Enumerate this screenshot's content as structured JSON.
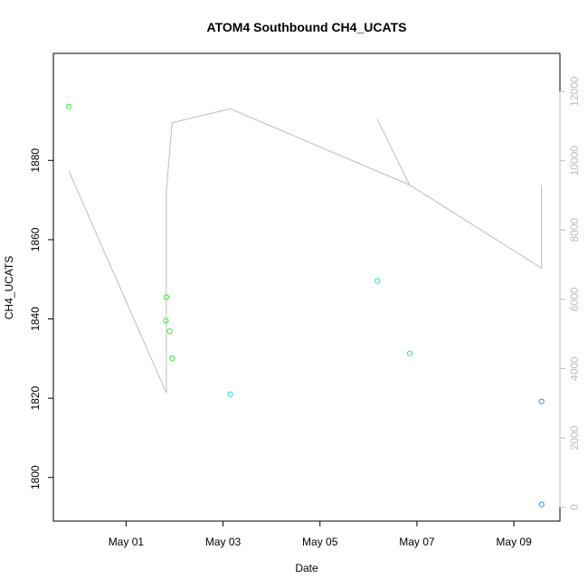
{
  "chart_data": {
    "type": "scatter",
    "title": "ATOM4 Southbound CH4_UCATS",
    "xlabel": "Date",
    "ylabel": "CH4_UCATS",
    "x_ticks": [
      "May 01",
      "May 03",
      "May 05",
      "May 07",
      "May 09"
    ],
    "x_tick_values": [
      1,
      3,
      5,
      7,
      9
    ],
    "xlim": [
      -0.5,
      9.95
    ],
    "ylim": [
      1789,
      1907
    ],
    "y_ticks": [
      1800,
      1820,
      1840,
      1860,
      1880
    ],
    "y2lim": [
      -400,
      13100
    ],
    "y2_ticks": [
      0,
      2000,
      4000,
      6000,
      8000,
      10000,
      12000
    ],
    "points": [
      {
        "x": -0.18,
        "y": 1893.6,
        "color": "#33ee33"
      },
      {
        "x": 1.83,
        "y": 1845.5,
        "color": "#33ee33"
      },
      {
        "x": 1.82,
        "y": 1839.6,
        "color": "#33ee33"
      },
      {
        "x": 1.9,
        "y": 1836.9,
        "color": "#33ee33"
      },
      {
        "x": 1.95,
        "y": 1830.1,
        "color": "#33ee33"
      },
      {
        "x": 3.15,
        "y": 1821.0,
        "color": "#22ddcc"
      },
      {
        "x": 6.18,
        "y": 1849.6,
        "color": "#22ddcc"
      },
      {
        "x": 6.85,
        "y": 1831.3,
        "color": "#22ddcc"
      },
      {
        "x": 9.57,
        "y": 1819.2,
        "color": "#2299ee"
      },
      {
        "x": 9.57,
        "y": 1793.2,
        "color": "#2299ee"
      }
    ],
    "altitude_line": {
      "color": "#bdbdbd",
      "x": [
        -0.18,
        1.83,
        1.83,
        1.9,
        1.95,
        3.15,
        6.85,
        6.18,
        6.85,
        9.57,
        9.57
      ],
      "y2": [
        9700,
        3300,
        9100,
        10300,
        11100,
        11500,
        9300,
        11200,
        9300,
        6900,
        9300
      ]
    }
  }
}
